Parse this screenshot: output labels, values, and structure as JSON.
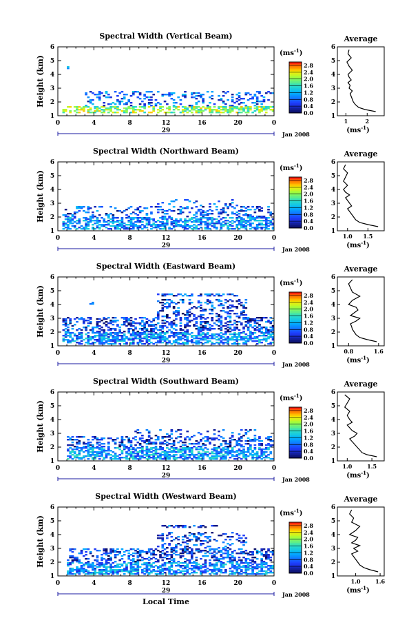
{
  "chart_data": [
    {
      "type": "heatmap",
      "title": "Spectral Width (Vertical Beam)",
      "ylabel": "Height (km)",
      "xlabel": "",
      "x_ticks": [
        "0",
        "4",
        "8",
        "12",
        "16",
        "20",
        "0"
      ],
      "xlim": [
        0,
        24
      ],
      "y_ticks": [
        "1",
        "2",
        "3",
        "4",
        "5",
        "6"
      ],
      "ylim": [
        1,
        6
      ],
      "date_day": "29",
      "date_label": "Jan 2008",
      "colorbar": {
        "unit": "(ms",
        "unit_exp": "-1",
        "unit_close": ")",
        "ticks": [
          "0.0",
          "0.4",
          "0.8",
          "1.2",
          "1.6",
          "2.0",
          "2.4",
          "2.8"
        ],
        "range": [
          0,
          3.0
        ]
      },
      "average": {
        "title": "Average",
        "xlabel": "(ms",
        "xlabel_exp": "-1",
        "xlabel_close": ")",
        "x_ticks": [
          {
            "label": "1",
            "value": 1
          },
          {
            "label": "2",
            "value": 2
          }
        ],
        "xlim": [
          0.6,
          2.8
        ],
        "ylim": [
          1,
          6
        ],
        "x": [
          2.4,
          1.9,
          1.6,
          1.45,
          1.35,
          1.3,
          1.25,
          1.2,
          1.3,
          1.15,
          1.2,
          1.1,
          1.25,
          1.15,
          1.1,
          1.3,
          1.15,
          1.05,
          1.25,
          1.1,
          1.15
        ],
        "y": [
          1.3,
          1.45,
          1.6,
          1.8,
          2.0,
          2.2,
          2.4,
          2.6,
          2.8,
          3.0,
          3.2,
          3.4,
          3.6,
          3.8,
          4.0,
          4.3,
          4.6,
          4.9,
          5.2,
          5.5,
          5.8
        ]
      },
      "panel_seed": 11,
      "activity": [
        {
          "t0": 0.5,
          "t1": 24,
          "h0": 1.15,
          "h1": 1.7,
          "p": 0.55,
          "mean": 2.0
        },
        {
          "t0": 3,
          "t1": 24,
          "h0": 1.7,
          "h1": 2.8,
          "p": 0.25,
          "mean": 0.8
        },
        {
          "t0": 0.8,
          "t1": 1.2,
          "h0": 4.4,
          "h1": 4.6,
          "p": 0.8,
          "mean": 0.8
        }
      ]
    },
    {
      "type": "heatmap",
      "title": "Spectral Width (Northward Beam)",
      "ylabel": "Height (km)",
      "xlabel": "",
      "x_ticks": [
        "0",
        "4",
        "8",
        "12",
        "16",
        "20",
        "0"
      ],
      "xlim": [
        0,
        24
      ],
      "y_ticks": [
        "1",
        "2",
        "3",
        "4",
        "5",
        "6"
      ],
      "ylim": [
        1,
        6
      ],
      "date_day": "29",
      "date_label": "Jan 2008",
      "colorbar": {
        "unit": "(ms",
        "unit_exp": "-1",
        "unit_close": ")",
        "ticks": [
          "0.0",
          "0.4",
          "0.8",
          "1.2",
          "1.6",
          "2.0",
          "2.4",
          "2.8"
        ],
        "range": [
          0,
          3.0
        ]
      },
      "average": {
        "title": "Average",
        "xlabel": "(ms",
        "xlabel_exp": "-1",
        "xlabel_close": ")",
        "x_ticks": [
          {
            "label": "1.0",
            "value": 1.0
          },
          {
            "label": "1.5",
            "value": 1.5
          }
        ],
        "xlim": [
          0.75,
          1.9
        ],
        "ylim": [
          1,
          6
        ],
        "x": [
          1.75,
          1.5,
          1.3,
          1.2,
          1.15,
          1.1,
          1.05,
          1.0,
          1.1,
          1.05,
          1.0,
          0.95,
          1.05,
          0.95,
          0.9,
          1.0,
          0.9,
          0.95,
          1.0,
          0.9,
          0.95
        ],
        "y": [
          1.3,
          1.45,
          1.6,
          1.8,
          2.0,
          2.2,
          2.4,
          2.6,
          2.8,
          3.0,
          3.2,
          3.4,
          3.6,
          3.8,
          4.0,
          4.3,
          4.6,
          4.9,
          5.2,
          5.5,
          5.8
        ]
      },
      "panel_seed": 23,
      "activity": [
        {
          "t0": 0.3,
          "t1": 24,
          "h0": 1.1,
          "h1": 2.0,
          "p": 0.55,
          "mean": 1.0
        },
        {
          "t0": 0.3,
          "t1": 24,
          "h0": 2.0,
          "h1": 2.8,
          "p": 0.25,
          "mean": 0.7
        },
        {
          "t0": 9,
          "t1": 20,
          "h0": 2.8,
          "h1": 3.3,
          "p": 0.12,
          "mean": 0.7
        }
      ]
    },
    {
      "type": "heatmap",
      "title": "Spectral Width (Eastward Beam)",
      "ylabel": "Height (km)",
      "xlabel": "",
      "x_ticks": [
        "0",
        "4",
        "8",
        "12",
        "16",
        "20",
        "0"
      ],
      "xlim": [
        0,
        24
      ],
      "y_ticks": [
        "1",
        "2",
        "3",
        "4",
        "5",
        "6"
      ],
      "ylim": [
        1,
        6
      ],
      "date_day": "29",
      "date_label": "Jan 2008",
      "colorbar": {
        "unit": "(ms",
        "unit_exp": "-1",
        "unit_close": ")",
        "ticks": [
          "0.0",
          "0.4",
          "0.8",
          "1.2",
          "1.6",
          "2.0",
          "2.4",
          "2.8"
        ],
        "range": [
          0,
          3.0
        ]
      },
      "average": {
        "title": "Average",
        "xlabel": "(ms",
        "xlabel_exp": "-1",
        "xlabel_close": ")",
        "x_ticks": [
          {
            "label": "0.8",
            "value": 0.8
          },
          {
            "label": "1.6",
            "value": 1.6
          }
        ],
        "xlim": [
          0.5,
          1.75
        ],
        "ylim": [
          1,
          6
        ],
        "x": [
          1.55,
          1.3,
          1.1,
          1.0,
          0.95,
          0.9,
          0.88,
          0.85,
          1.0,
          1.1,
          0.85,
          0.95,
          1.05,
          1.0,
          0.8,
          0.9,
          1.1,
          0.9,
          0.85,
          0.8,
          0.9
        ],
        "y": [
          1.3,
          1.45,
          1.6,
          1.8,
          2.0,
          2.2,
          2.4,
          2.6,
          2.8,
          3.0,
          3.2,
          3.4,
          3.6,
          3.8,
          4.0,
          4.3,
          4.6,
          4.9,
          5.2,
          5.5,
          5.8
        ]
      },
      "panel_seed": 37,
      "activity": [
        {
          "t0": 0.5,
          "t1": 24,
          "h0": 1.1,
          "h1": 2.0,
          "p": 0.6,
          "mean": 1.0
        },
        {
          "t0": 0.5,
          "t1": 24,
          "h0": 2.0,
          "h1": 3.1,
          "p": 0.4,
          "mean": 0.6
        },
        {
          "t0": 11,
          "t1": 21,
          "h0": 3.1,
          "h1": 4.4,
          "p": 0.3,
          "mean": 0.6
        },
        {
          "t0": 11,
          "t1": 20,
          "h0": 4.6,
          "h1": 4.8,
          "p": 0.5,
          "mean": 0.6
        },
        {
          "t0": 3.5,
          "t1": 4,
          "h0": 4.0,
          "h1": 4.2,
          "p": 0.8,
          "mean": 0.6
        }
      ]
    },
    {
      "type": "heatmap",
      "title": "Spectral Width (Southward Beam)",
      "ylabel": "Height (km)",
      "xlabel": "",
      "x_ticks": [
        "0",
        "4",
        "8",
        "12",
        "16",
        "20",
        "0"
      ],
      "xlim": [
        0,
        24
      ],
      "y_ticks": [
        "1",
        "2",
        "3",
        "4",
        "5",
        "6"
      ],
      "ylim": [
        1,
        6
      ],
      "date_day": "29",
      "date_label": "Jan 2008",
      "colorbar": {
        "unit": "(ms",
        "unit_exp": "-1",
        "unit_close": ")",
        "ticks": [
          "0.0",
          "0.4",
          "0.8",
          "1.2",
          "1.6",
          "2.0",
          "2.4",
          "2.8"
        ],
        "range": [
          0,
          3.0
        ]
      },
      "average": {
        "title": "Average",
        "xlabel": "(ms",
        "xlabel_exp": "-1",
        "xlabel_close": ")",
        "x_ticks": [
          {
            "label": "1.0",
            "value": 1.0
          },
          {
            "label": "1.5",
            "value": 1.5
          }
        ],
        "xlim": [
          0.8,
          1.75
        ],
        "ylim": [
          1,
          6
        ],
        "x": [
          1.6,
          1.4,
          1.3,
          1.25,
          1.2,
          1.15,
          1.1,
          1.05,
          1.15,
          1.2,
          1.1,
          1.05,
          1.0,
          1.1,
          1.05,
          1.0,
          1.05,
          0.95,
          1.0,
          1.05,
          0.95
        ],
        "y": [
          1.3,
          1.45,
          1.6,
          1.8,
          2.0,
          2.2,
          2.4,
          2.6,
          2.8,
          3.0,
          3.2,
          3.4,
          3.6,
          3.8,
          4.0,
          4.3,
          4.6,
          4.9,
          5.2,
          5.5,
          5.8
        ]
      },
      "panel_seed": 53,
      "activity": [
        {
          "t0": 0.8,
          "t1": 24,
          "h0": 1.1,
          "h1": 2.0,
          "p": 0.6,
          "mean": 1.1
        },
        {
          "t0": 0.8,
          "t1": 24,
          "h0": 2.0,
          "h1": 2.8,
          "p": 0.35,
          "mean": 0.6
        },
        {
          "t0": 8,
          "t1": 22,
          "h0": 2.8,
          "h1": 3.3,
          "p": 0.15,
          "mean": 0.6
        }
      ]
    },
    {
      "type": "heatmap",
      "title": "Spectral Width (Westward Beam)",
      "ylabel": "Height (km)",
      "xlabel": "Local Time",
      "x_ticks": [
        "0",
        "4",
        "8",
        "12",
        "16",
        "20",
        "0"
      ],
      "xlim": [
        0,
        24
      ],
      "y_ticks": [
        "1",
        "2",
        "3",
        "4",
        "5",
        "6"
      ],
      "ylim": [
        1,
        6
      ],
      "date_day": "29",
      "date_label": "Jan 2008",
      "colorbar": {
        "unit": "(ms",
        "unit_exp": "-1",
        "unit_close": ")",
        "ticks": [
          "0.0",
          "0.4",
          "0.8",
          "1.2",
          "1.6",
          "2.0",
          "2.4",
          "2.8"
        ],
        "range": [
          0,
          3.0
        ]
      },
      "average": {
        "title": "Average",
        "xlabel": "(ms",
        "xlabel_exp": "-1",
        "xlabel_close": ")",
        "x_ticks": [
          {
            "label": "1.0",
            "value": 1.0
          },
          {
            "label": "1.6",
            "value": 1.6
          }
        ],
        "xlim": [
          0.55,
          1.7
        ],
        "ylim": [
          1,
          6
        ],
        "x": [
          1.55,
          1.35,
          1.2,
          1.1,
          1.05,
          1.0,
          0.95,
          0.9,
          1.05,
          0.95,
          1.1,
          0.9,
          1.0,
          1.05,
          0.85,
          1.0,
          1.1,
          0.9,
          0.95,
          0.85,
          0.9
        ],
        "y": [
          1.3,
          1.45,
          1.6,
          1.8,
          2.0,
          2.2,
          2.4,
          2.6,
          2.8,
          3.0,
          3.2,
          3.4,
          3.6,
          3.8,
          4.0,
          4.3,
          4.6,
          4.9,
          5.2,
          5.5,
          5.8
        ]
      },
      "panel_seed": 71,
      "activity": [
        {
          "t0": 0.8,
          "t1": 24,
          "h0": 1.1,
          "h1": 2.0,
          "p": 0.6,
          "mean": 1.0
        },
        {
          "t0": 0.8,
          "t1": 24,
          "h0": 2.0,
          "h1": 3.0,
          "p": 0.4,
          "mean": 0.6
        },
        {
          "t0": 11,
          "t1": 21,
          "h0": 3.0,
          "h1": 4.2,
          "p": 0.25,
          "mean": 0.6
        },
        {
          "t0": 11,
          "t1": 18,
          "h0": 4.5,
          "h1": 4.7,
          "p": 0.35,
          "mean": 0.6
        }
      ]
    }
  ]
}
